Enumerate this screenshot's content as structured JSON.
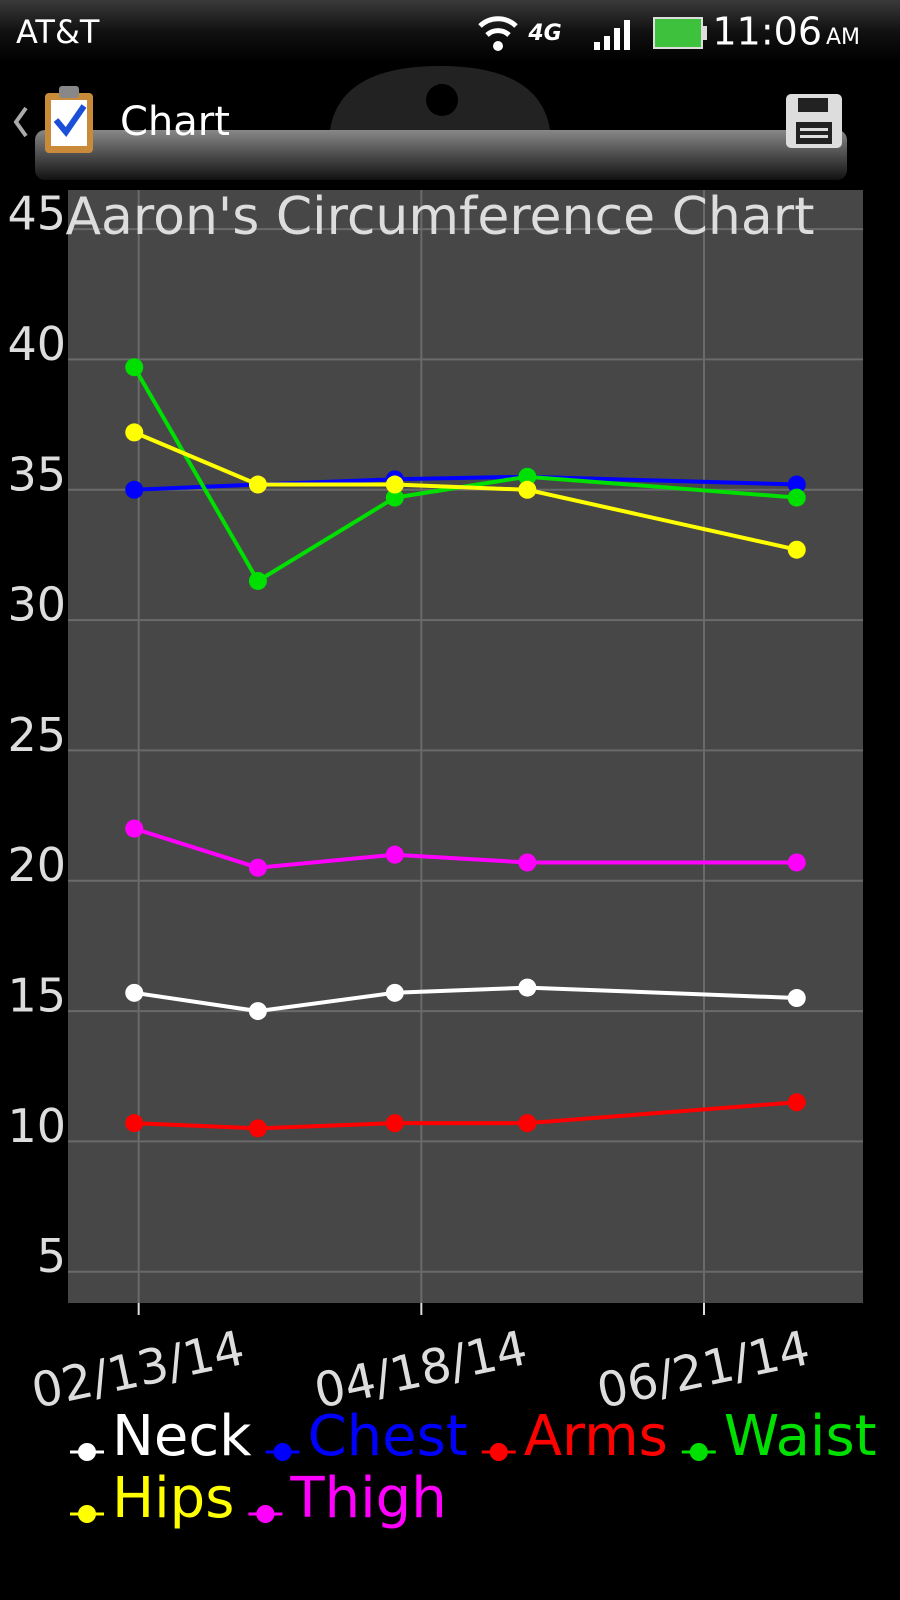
{
  "status_bar": {
    "carrier": "AT&T",
    "network": "4G",
    "time": "11:06",
    "ampm": "AM"
  },
  "app_bar": {
    "title": "Chart"
  },
  "chart_data": {
    "type": "line",
    "title": "Aaron's Circumference Chart",
    "x": [
      "02/12/14",
      "03/12/14",
      "04/12/14",
      "05/12/14",
      "07/12/14"
    ],
    "xlim": [
      "01/28/14",
      "07/27/14"
    ],
    "xticks": [
      "02/13/14",
      "04/18/14",
      "06/21/14"
    ],
    "ylim": [
      3.8,
      46.5
    ],
    "yticks": [
      5,
      10,
      15,
      20,
      25,
      30,
      35,
      40,
      45
    ],
    "grid": true,
    "series": [
      {
        "name": "Neck",
        "color": "#ffffff",
        "values": [
          15.7,
          15.0,
          15.7,
          15.9,
          15.5
        ]
      },
      {
        "name": "Chest",
        "color": "#0000ff",
        "values": [
          35.0,
          35.2,
          35.4,
          35.5,
          35.2
        ]
      },
      {
        "name": "Arms",
        "color": "#ff0000",
        "values": [
          10.7,
          10.5,
          10.7,
          10.7,
          11.5
        ]
      },
      {
        "name": "Waist",
        "color": "#00e000",
        "values": [
          39.7,
          31.5,
          34.7,
          35.5,
          34.7
        ]
      },
      {
        "name": "Hips",
        "color": "#ffff00",
        "values": [
          37.2,
          35.2,
          35.2,
          35.0,
          32.7
        ]
      },
      {
        "name": "Thigh",
        "color": "#ff00ff",
        "values": [
          22.0,
          20.5,
          21.0,
          20.7,
          20.7
        ]
      }
    ]
  }
}
